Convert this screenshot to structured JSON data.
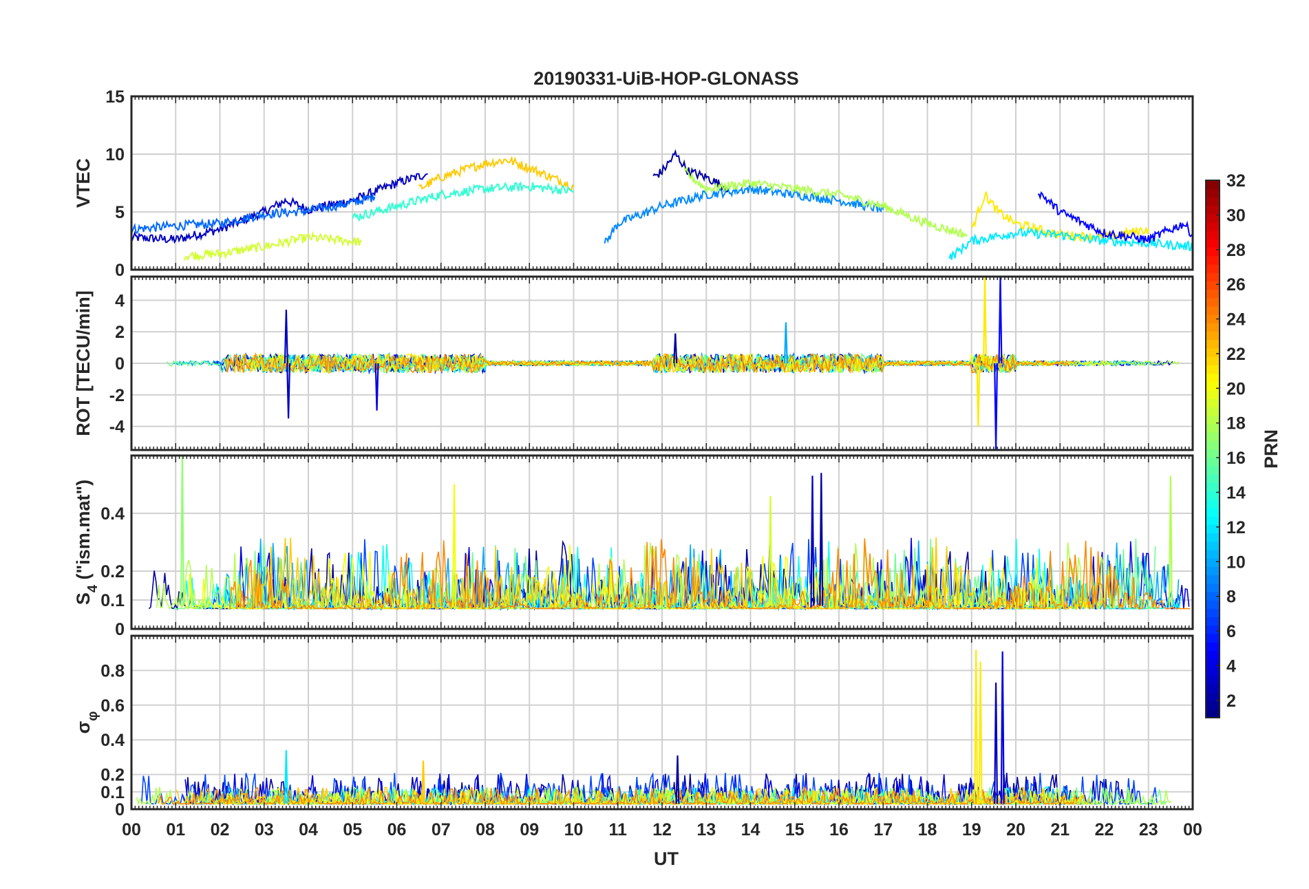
{
  "chart_data": {
    "type": "line",
    "title": "20190331-UiB-HOP-GLONASS",
    "xlabel": "UT",
    "x_ticks": [
      "00",
      "01",
      "02",
      "03",
      "04",
      "05",
      "06",
      "07",
      "08",
      "09",
      "10",
      "11",
      "12",
      "13",
      "14",
      "15",
      "16",
      "17",
      "18",
      "19",
      "20",
      "21",
      "22",
      "23",
      "00"
    ],
    "x_range_hours": [
      0,
      24
    ],
    "grid": true,
    "colorbar": {
      "label": "PRN",
      "range": [
        1,
        32
      ],
      "ticks": [
        "2",
        "4",
        "6",
        "8",
        "10",
        "12",
        "14",
        "16",
        "18",
        "20",
        "22",
        "24",
        "26",
        "28",
        "30",
        "32"
      ],
      "colormap": "jet"
    },
    "panels": [
      {
        "id": "vtec",
        "ylabel": "VTEC",
        "ylim": [
          0,
          15
        ],
        "yticks": [
          "0",
          "5",
          "10",
          "15"
        ],
        "series": [
          {
            "prn": 3,
            "t": [
              0.0,
              1.0,
              2.0,
              3.0,
              3.5,
              4.0,
              5.0,
              6.0,
              6.7
            ],
            "v": [
              2.8,
              2.6,
              3.5,
              5.0,
              6.0,
              5.2,
              6.0,
              7.5,
              8.3
            ]
          },
          {
            "prn": 8,
            "t": [
              0.0,
              1.0,
              2.0,
              3.0,
              4.0,
              5.0,
              5.5
            ],
            "v": [
              3.5,
              3.8,
              4.0,
              4.8,
              5.1,
              5.8,
              6.3
            ]
          },
          {
            "prn": 19,
            "t": [
              1.2,
              2.0,
              3.0,
              4.0,
              5.2
            ],
            "v": [
              1.2,
              1.4,
              2.0,
              2.8,
              2.4
            ]
          },
          {
            "prn": 22,
            "t": [
              6.5,
              7.0,
              7.5,
              8.0,
              8.5,
              9.0,
              9.5,
              10.0
            ],
            "v": [
              7.0,
              8.0,
              8.6,
              9.2,
              9.5,
              8.8,
              8.0,
              7.2
            ]
          },
          {
            "prn": 14,
            "t": [
              5.0,
              6.0,
              7.0,
              8.0,
              9.0,
              10.0
            ],
            "v": [
              4.5,
              5.5,
              6.5,
              7.0,
              7.2,
              6.8
            ]
          },
          {
            "prn": 2,
            "t": [
              11.8,
              12.0,
              12.3,
              12.6,
              13.0,
              13.5
            ],
            "v": [
              8.0,
              8.5,
              10.0,
              8.5,
              8.0,
              7.0
            ]
          },
          {
            "prn": 9,
            "t": [
              10.7,
              11.0,
              12.0,
              13.0,
              14.0,
              15.0,
              16.0,
              17.0
            ],
            "v": [
              2.2,
              4.0,
              5.5,
              6.5,
              7.0,
              6.5,
              6.0,
              5.2
            ]
          },
          {
            "prn": 18,
            "t": [
              12.5,
              13.0,
              14.0,
              15.0,
              16.0,
              17.0,
              18.0,
              18.9
            ],
            "v": [
              8.5,
              7.0,
              7.5,
              7.0,
              6.5,
              5.5,
              4.0,
              3.0
            ]
          },
          {
            "prn": 21,
            "t": [
              19.0,
              19.3,
              19.6,
              20.0,
              21.0,
              22.0,
              23.0
            ],
            "v": [
              3.5,
              6.5,
              5.0,
              4.0,
              3.0,
              2.8,
              3.5
            ]
          },
          {
            "prn": 12,
            "t": [
              18.5,
              19.0,
              20.0,
              21.0,
              22.0,
              23.0,
              24.0
            ],
            "v": [
              1.0,
              2.5,
              3.2,
              3.0,
              2.5,
              2.3,
              2.0
            ]
          },
          {
            "prn": 5,
            "t": [
              20.5,
              21.0,
              22.0,
              23.0,
              23.8,
              24.0
            ],
            "v": [
              6.8,
              5.0,
              3.2,
              2.6,
              4.0,
              3.0
            ]
          }
        ]
      },
      {
        "id": "rot",
        "ylabel": "ROT [TECU/min]",
        "ylim": [
          -5.5,
          5.5
        ],
        "yticks": [
          "-4",
          "-2",
          "0",
          "2",
          "4"
        ],
        "spikes": [
          {
            "prn": 3,
            "t": 3.5,
            "v": 3.4
          },
          {
            "prn": 3,
            "t": 3.55,
            "v": -3.5
          },
          {
            "prn": 4,
            "t": 5.55,
            "v": -3.0
          },
          {
            "prn": 21,
            "t": 19.15,
            "v": -4.0
          },
          {
            "prn": 21,
            "t": 19.3,
            "v": 5.5
          },
          {
            "prn": 5,
            "t": 19.55,
            "v": -5.5
          },
          {
            "prn": 5,
            "t": 19.65,
            "v": 5.5
          },
          {
            "prn": 10,
            "t": 14.8,
            "v": 2.6
          },
          {
            "prn": 2,
            "t": 12.3,
            "v": 1.9
          }
        ]
      },
      {
        "id": "s4",
        "ylabel": "S4 (\"ism.mat\")",
        "ylabel_main": "S",
        "ylabel_sub": "4",
        "ylabel_rest": " (\"ism.mat\")",
        "ylim": [
          0,
          0.6
        ],
        "yticks": [
          "0",
          "0.1",
          "0.2",
          "0.4"
        ],
        "spikes": [
          {
            "prn": 17,
            "t": 1.15,
            "v": 0.6
          },
          {
            "prn": 20,
            "t": 7.3,
            "v": 0.5
          },
          {
            "prn": 3,
            "t": 15.4,
            "v": 0.53
          },
          {
            "prn": 2,
            "t": 15.6,
            "v": 0.54
          },
          {
            "prn": 18,
            "t": 23.5,
            "v": 0.53
          },
          {
            "prn": 19,
            "t": 14.45,
            "v": 0.46
          }
        ]
      },
      {
        "id": "sigma_phi",
        "ylabel": "σφ",
        "ylabel_main": "σ",
        "ylabel_sub": "φ",
        "ylim": [
          0,
          1.0
        ],
        "yticks": [
          "0",
          "0.1",
          "0.2",
          "0.4",
          "0.6",
          "0.8"
        ],
        "spikes": [
          {
            "prn": 21,
            "t": 19.1,
            "v": 0.92
          },
          {
            "prn": 21,
            "t": 19.2,
            "v": 0.85
          },
          {
            "prn": 3,
            "t": 19.55,
            "v": 0.73
          },
          {
            "prn": 4,
            "t": 19.7,
            "v": 0.91
          },
          {
            "prn": 12,
            "t": 3.5,
            "v": 0.34
          },
          {
            "prn": 22,
            "t": 6.6,
            "v": 0.28
          },
          {
            "prn": 2,
            "t": 12.35,
            "v": 0.31
          }
        ]
      }
    ]
  }
}
